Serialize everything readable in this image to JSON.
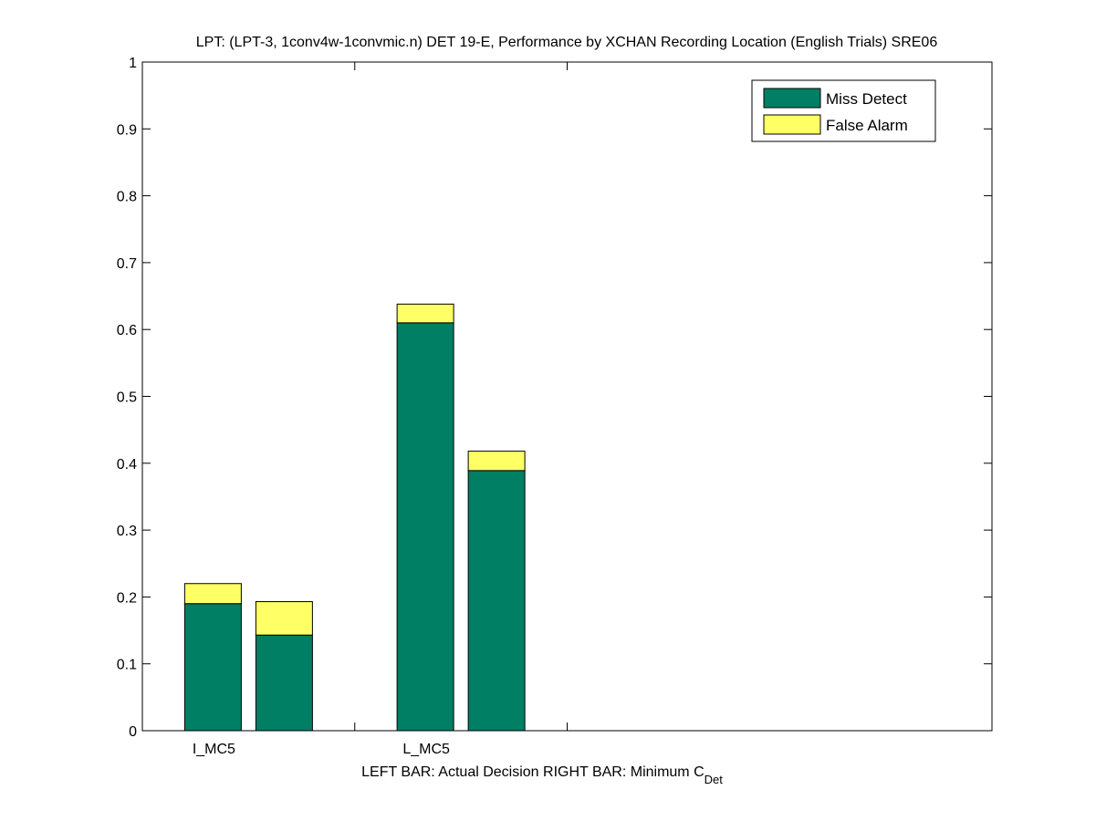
{
  "chart_data": {
    "type": "bar",
    "stacked": true,
    "title": "LPT: (LPT-3, 1conv4w-1convmic.n) DET 19-E,  Performance by XCHAN Recording Location (English Trials) SRE06",
    "xlabel_main": "LEFT BAR: Actual Decision     RIGHT BAR: Minimum C",
    "xlabel_sub": "Det",
    "ylim": [
      0,
      1
    ],
    "yticks": [
      "0",
      "0.1",
      "0.2",
      "0.3",
      "0.4",
      "0.5",
      "0.6",
      "0.7",
      "0.8",
      "0.9",
      "1"
    ],
    "categories": [
      "I_MC5",
      "L_MC5"
    ],
    "bars_per_category": [
      "Actual Decision",
      "Minimum C_Det"
    ],
    "series": [
      {
        "name": "Miss Detect",
        "color": "#007f65",
        "values": [
          [
            0.19,
            0.143
          ],
          [
            0.61,
            0.389
          ]
        ]
      },
      {
        "name": "False Alarm",
        "color": "#ffff66",
        "values": [
          [
            0.03,
            0.05
          ],
          [
            0.028,
            0.029
          ]
        ]
      }
    ],
    "grid": false,
    "legend_position": "top-right"
  }
}
